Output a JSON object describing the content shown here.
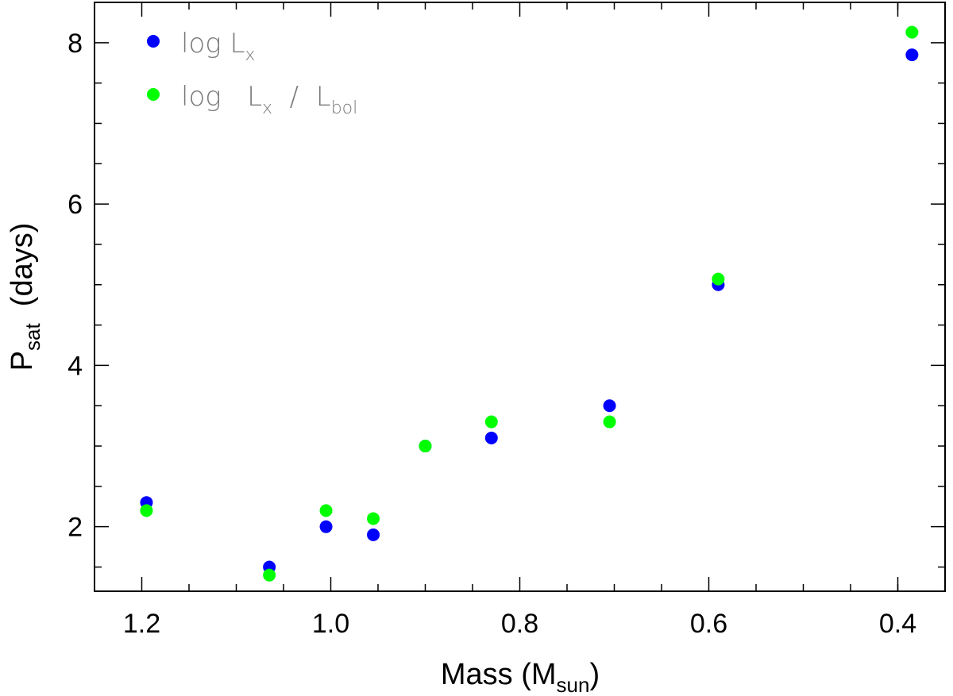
{
  "chart_data": {
    "type": "scatter",
    "xlabel": {
      "main": "Mass (M",
      "sub": "sun",
      "tail": ")"
    },
    "ylabel": {
      "main": "P",
      "sub": "sat",
      "tail": "  (days)"
    },
    "xlim": [
      1.25,
      0.35
    ],
    "ylim": [
      1.2,
      8.5
    ],
    "x_ticks": [
      1.2,
      1.0,
      0.8,
      0.6,
      0.4
    ],
    "x_tick_labels": [
      "1.2",
      "1.0",
      "0.8",
      "0.6",
      "0.4"
    ],
    "x_minor_ticks": [
      1.15,
      1.1,
      1.05,
      0.95,
      0.9,
      0.85,
      0.75,
      0.7,
      0.65,
      0.55,
      0.5,
      0.45,
      0.4,
      0.35
    ],
    "y_ticks": [
      2,
      4,
      6,
      8
    ],
    "y_tick_labels": [
      "2",
      "4",
      "6",
      "8"
    ],
    "y_minor_ticks": [
      1.5,
      2.5,
      3,
      3.5,
      4.5,
      5,
      5.5,
      6.5,
      7,
      7.5
    ],
    "grid": false,
    "legend_position": "top-left",
    "series": [
      {
        "name": "log L_x",
        "legend": {
          "main": "log  L",
          "sub": "x",
          "tail": ""
        },
        "color": "#0000ff",
        "points": [
          {
            "x": 1.195,
            "y": 2.3
          },
          {
            "x": 1.065,
            "y": 1.5
          },
          {
            "x": 1.005,
            "y": 2.0
          },
          {
            "x": 0.955,
            "y": 1.9
          },
          {
            "x": 0.9,
            "y": 3.0
          },
          {
            "x": 0.83,
            "y": 3.1
          },
          {
            "x": 0.705,
            "y": 3.5
          },
          {
            "x": 0.59,
            "y": 5.0
          },
          {
            "x": 0.385,
            "y": 7.85
          }
        ]
      },
      {
        "name": "log L_x / L_bol",
        "legend": {
          "main": "log   L",
          "sub": "x",
          "tail": "  /  L",
          "sub2": "bol"
        },
        "color": "#00ff00",
        "points": [
          {
            "x": 1.195,
            "y": 2.2
          },
          {
            "x": 1.065,
            "y": 1.4
          },
          {
            "x": 1.005,
            "y": 2.2
          },
          {
            "x": 0.955,
            "y": 2.1
          },
          {
            "x": 0.9,
            "y": 3.0
          },
          {
            "x": 0.83,
            "y": 3.3
          },
          {
            "x": 0.705,
            "y": 3.3
          },
          {
            "x": 0.59,
            "y": 5.07
          },
          {
            "x": 0.385,
            "y": 8.13
          }
        ]
      }
    ]
  }
}
